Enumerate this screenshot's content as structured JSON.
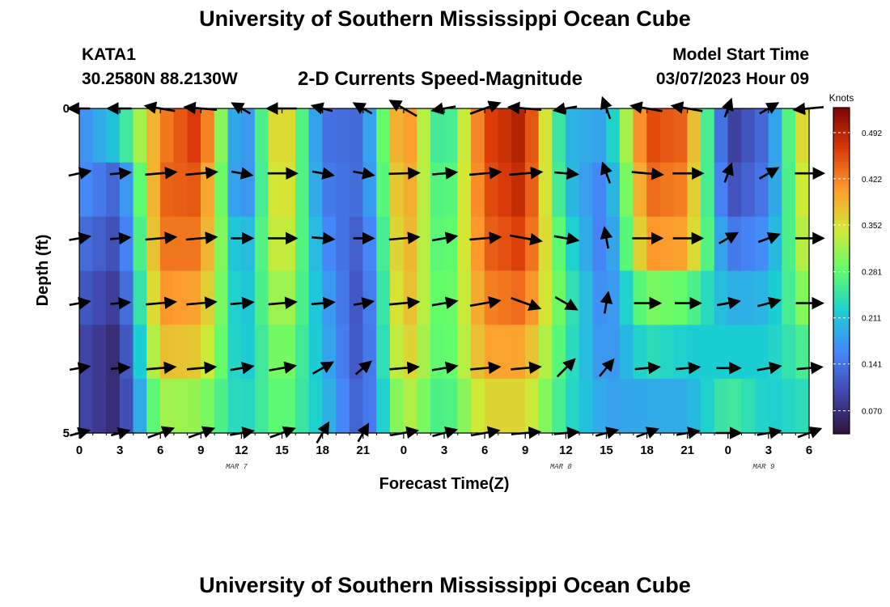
{
  "header": {
    "title": "University of Southern Mississippi Ocean Cube",
    "station": "KATA1",
    "coords": "30.2580N  88.2130W",
    "subtitle": "2-D Currents Speed-Magnitude",
    "model_start_label": "Model Start Time",
    "model_start_value": "03/07/2023 Hour 09"
  },
  "footer": {
    "title": "University of Southern Mississippi Ocean Cube"
  },
  "chart_data": {
    "type": "heatmap",
    "title": "2-D Currents Speed-Magnitude",
    "xlabel": "Forecast Time(Z)",
    "ylabel": "Depth (ft)",
    "x_tick_labels": [
      "0",
      "3",
      "6",
      "9",
      "12",
      "15",
      "18",
      "21",
      "0",
      "3",
      "6",
      "9",
      "12",
      "15",
      "18",
      "21",
      "0",
      "3",
      "6"
    ],
    "date_labels": [
      {
        "label": "MAR 7",
        "tick_index": 4
      },
      {
        "label": "MAR 8",
        "tick_index": 12
      },
      {
        "label": "MAR 9",
        "tick_index": 17
      }
    ],
    "y_tick_labels": [
      "0",
      "5"
    ],
    "depth_levels": [
      "0",
      "1",
      "2",
      "3",
      "4",
      "5"
    ],
    "colorbar": {
      "unit": "Knots",
      "ticks": [
        "0.070",
        "0.141",
        "0.211",
        "0.281",
        "0.352",
        "0.422",
        "0.492"
      ],
      "tick_values": [
        0.07,
        0.141,
        0.211,
        0.281,
        0.352,
        0.422,
        0.492
      ],
      "min": 0.035,
      "max": 0.53,
      "colors": [
        "#30123b",
        "#4147ad",
        "#4686fa",
        "#1bcfd4",
        "#61fc6c",
        "#d2e935",
        "#fe9b2d",
        "#db3a07",
        "#7a0403"
      ]
    },
    "profiles_note": "profile rows from surface (0 ft) to bottom (5 ft); values in knots at 3-hour steps",
    "hours": [
      0,
      3,
      6,
      9,
      12,
      15,
      18,
      21,
      24,
      27,
      30,
      33,
      36,
      39,
      42,
      45,
      48,
      51,
      54
    ],
    "speed_profiles": [
      [
        0.16,
        0.22,
        0.42,
        0.48,
        0.13,
        0.4,
        0.14,
        0.13,
        0.44,
        0.22,
        0.46,
        0.5,
        0.2,
        0.18,
        0.46,
        0.44,
        0.08,
        0.14,
        0.4
      ],
      [
        0.17,
        0.12,
        0.44,
        0.45,
        0.13,
        0.39,
        0.15,
        0.13,
        0.42,
        0.24,
        0.45,
        0.49,
        0.21,
        0.15,
        0.44,
        0.42,
        0.1,
        0.15,
        0.38
      ],
      [
        0.14,
        0.1,
        0.43,
        0.43,
        0.17,
        0.37,
        0.17,
        0.11,
        0.41,
        0.25,
        0.44,
        0.47,
        0.24,
        0.14,
        0.41,
        0.4,
        0.14,
        0.17,
        0.36
      ],
      [
        0.12,
        0.08,
        0.41,
        0.4,
        0.19,
        0.34,
        0.19,
        0.1,
        0.4,
        0.26,
        0.42,
        0.44,
        0.26,
        0.15,
        0.3,
        0.28,
        0.19,
        0.2,
        0.32
      ],
      [
        0.1,
        0.06,
        0.38,
        0.37,
        0.2,
        0.31,
        0.2,
        0.1,
        0.38,
        0.26,
        0.4,
        0.4,
        0.25,
        0.16,
        0.24,
        0.22,
        0.22,
        0.22,
        0.27
      ],
      [
        0.1,
        0.06,
        0.32,
        0.31,
        0.22,
        0.29,
        0.21,
        0.11,
        0.34,
        0.25,
        0.36,
        0.36,
        0.24,
        0.18,
        0.19,
        0.19,
        0.26,
        0.22,
        0.24
      ]
    ],
    "vector_directions_deg_note": "arrow direction in degrees counterclockwise from east, one row per depth level",
    "vector_directions_deg": [
      [
        180,
        180,
        170,
        175,
        150,
        180,
        165,
        150,
        150,
        190,
        20,
        175,
        190,
        110,
        170,
        170,
        70,
        30,
        185
      ],
      [
        12,
        5,
        5,
        5,
        -10,
        0,
        -10,
        -10,
        2,
        5,
        5,
        5,
        -5,
        110,
        -5,
        0,
        70,
        30,
        0
      ],
      [
        10,
        5,
        5,
        5,
        0,
        0,
        -5,
        0,
        5,
        10,
        5,
        -10,
        -10,
        100,
        0,
        0,
        30,
        20,
        0
      ],
      [
        10,
        5,
        5,
        5,
        5,
        5,
        5,
        10,
        5,
        10,
        10,
        -20,
        -30,
        80,
        0,
        0,
        10,
        15,
        0
      ],
      [
        10,
        5,
        5,
        5,
        10,
        10,
        30,
        40,
        5,
        10,
        5,
        5,
        45,
        50,
        5,
        5,
        0,
        10,
        5
      ],
      [
        15,
        15,
        20,
        20,
        10,
        20,
        60,
        60,
        10,
        15,
        10,
        5,
        5,
        15,
        20,
        10,
        0,
        10,
        20
      ]
    ]
  }
}
